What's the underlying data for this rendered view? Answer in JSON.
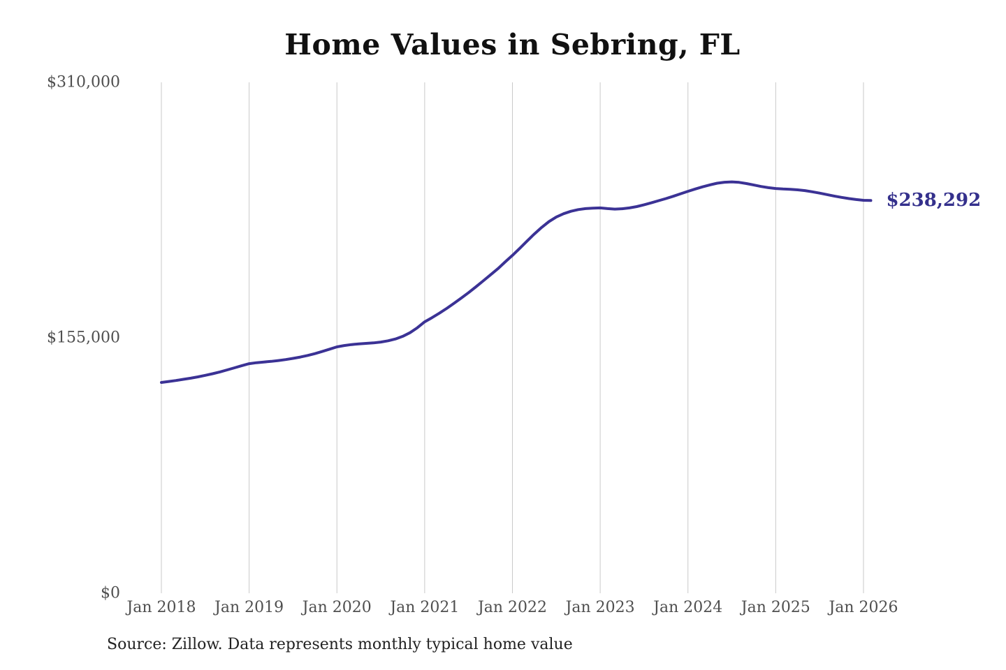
{
  "title": "Home Values in Sebring, FL",
  "source_note": "Source: Zillow. Data represents monthly typical home value",
  "colors": {
    "background": "#ffffff",
    "line": "#3b3295",
    "latest_label": "#34308c",
    "grid": "#c9c9c9",
    "axis_text": "#4f4f4f",
    "title_text": "#111111",
    "source_text": "#222222"
  },
  "chart_data": {
    "type": "line",
    "title": "Home Values in Sebring, FL",
    "xlabel": "",
    "ylabel": "",
    "ylim": [
      0,
      310000
    ],
    "grid": "vertical-only",
    "legend": "none",
    "x_tick_labels": [
      "Jan 2018",
      "Jan 2019",
      "Jan 2020",
      "Jan 2021",
      "Jan 2022",
      "Jan 2023",
      "Jan 2024",
      "Jan 2025",
      "Jan 2026"
    ],
    "y_ticks": [
      {
        "value": 0,
        "label": "$0"
      },
      {
        "value": 155000,
        "label": "$155,000"
      },
      {
        "value": 310000,
        "label": "$310,000"
      }
    ],
    "latest_value": 238292,
    "latest_value_label": "$238,292",
    "series": [
      {
        "name": "Monthly typical home value",
        "x_start": "2018-01",
        "x_step_months": 1,
        "values": [
          127900,
          128500,
          129100,
          129800,
          130500,
          131300,
          132200,
          133200,
          134300,
          135500,
          136800,
          138100,
          139300,
          139900,
          140300,
          140700,
          141200,
          141800,
          142500,
          143300,
          144300,
          145400,
          146700,
          148100,
          149500,
          150300,
          150900,
          151300,
          151600,
          151900,
          152400,
          153200,
          154300,
          155900,
          158100,
          161100,
          164700,
          167200,
          169900,
          172800,
          175900,
          179100,
          182400,
          185900,
          189500,
          193200,
          196900,
          201000,
          205000,
          209300,
          213700,
          218000,
          222000,
          225500,
          228300,
          230300,
          231800,
          232800,
          233400,
          233700,
          233800,
          233400,
          233100,
          233300,
          233800,
          234600,
          235700,
          236900,
          238200,
          239500,
          240900,
          242400,
          243900,
          245300,
          246600,
          247800,
          248800,
          249400,
          249600,
          249300,
          248600,
          247700,
          246800,
          246100,
          245600,
          245300,
          245100,
          244800,
          244300,
          243600,
          242800,
          241900,
          241000,
          240200,
          239500,
          238900,
          238450,
          238292
        ]
      }
    ]
  }
}
